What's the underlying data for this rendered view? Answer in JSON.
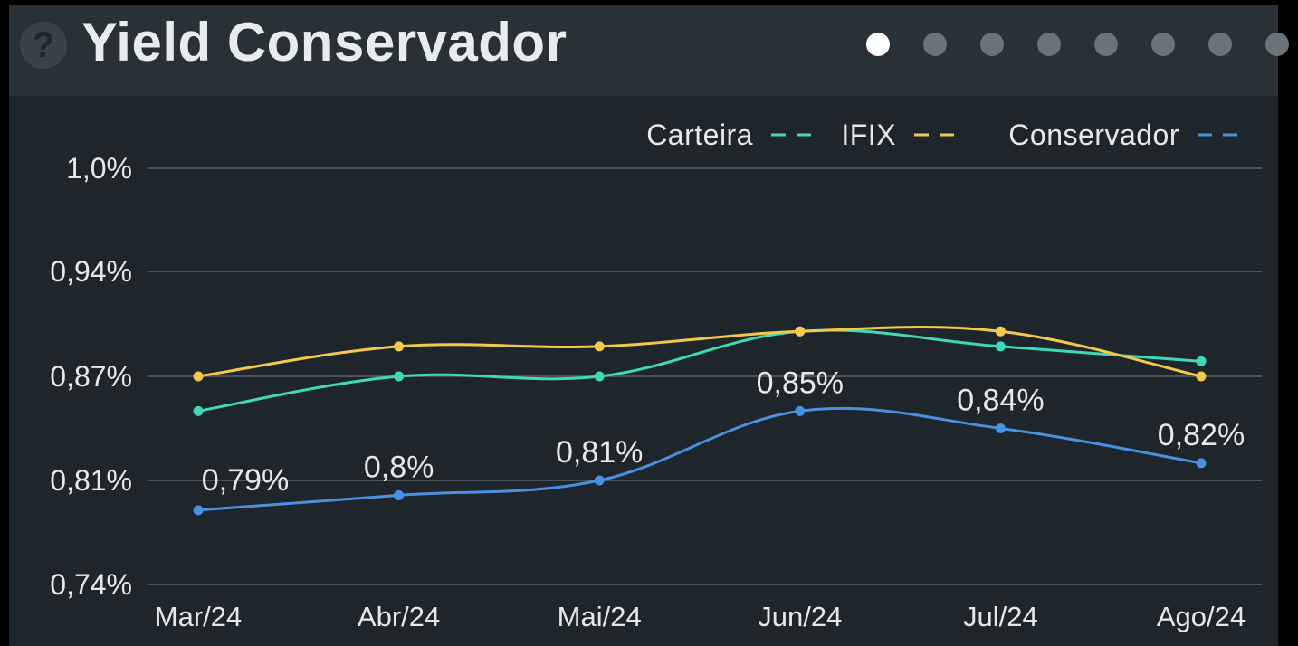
{
  "header": {
    "title": "Yield Conservador",
    "help_icon": "question-circle-icon",
    "page_count": 8,
    "active_page": 0
  },
  "chart_data": {
    "type": "line",
    "title": "",
    "xlabel": "",
    "ylabel": "",
    "categories": [
      "Mar/24",
      "Abr/24",
      "Mai/24",
      "Jun/24",
      "Jul/24",
      "Ago/24"
    ],
    "y_ticks": [
      {
        "value": 0.74,
        "label": "0,74%"
      },
      {
        "value": 0.81,
        "label": "0,81%"
      },
      {
        "value": 0.87,
        "label": "0,87%"
      },
      {
        "value": 0.94,
        "label": "0,94%"
      },
      {
        "value": 1.0,
        "label": "1,0%"
      }
    ],
    "ylim": [
      0.74,
      1.0
    ],
    "grid": true,
    "legend_position": "top-right",
    "series": [
      {
        "name": "Carteira",
        "color": "#3fd8b8",
        "values": [
          0.85,
          0.87,
          0.87,
          0.9,
          0.89,
          0.88
        ],
        "labels": null
      },
      {
        "name": "IFIX",
        "color": "#f2c94c",
        "values": [
          0.87,
          0.89,
          0.89,
          0.9,
          0.9,
          0.87
        ],
        "labels": null
      },
      {
        "name": "Conservador",
        "color": "#4a8fe0",
        "values": [
          0.79,
          0.8,
          0.81,
          0.85,
          0.84,
          0.82
        ],
        "labels": [
          "0,79%",
          "0,8%",
          "0,81%",
          "0,85%",
          "0,84%",
          "0,82%"
        ]
      }
    ]
  }
}
